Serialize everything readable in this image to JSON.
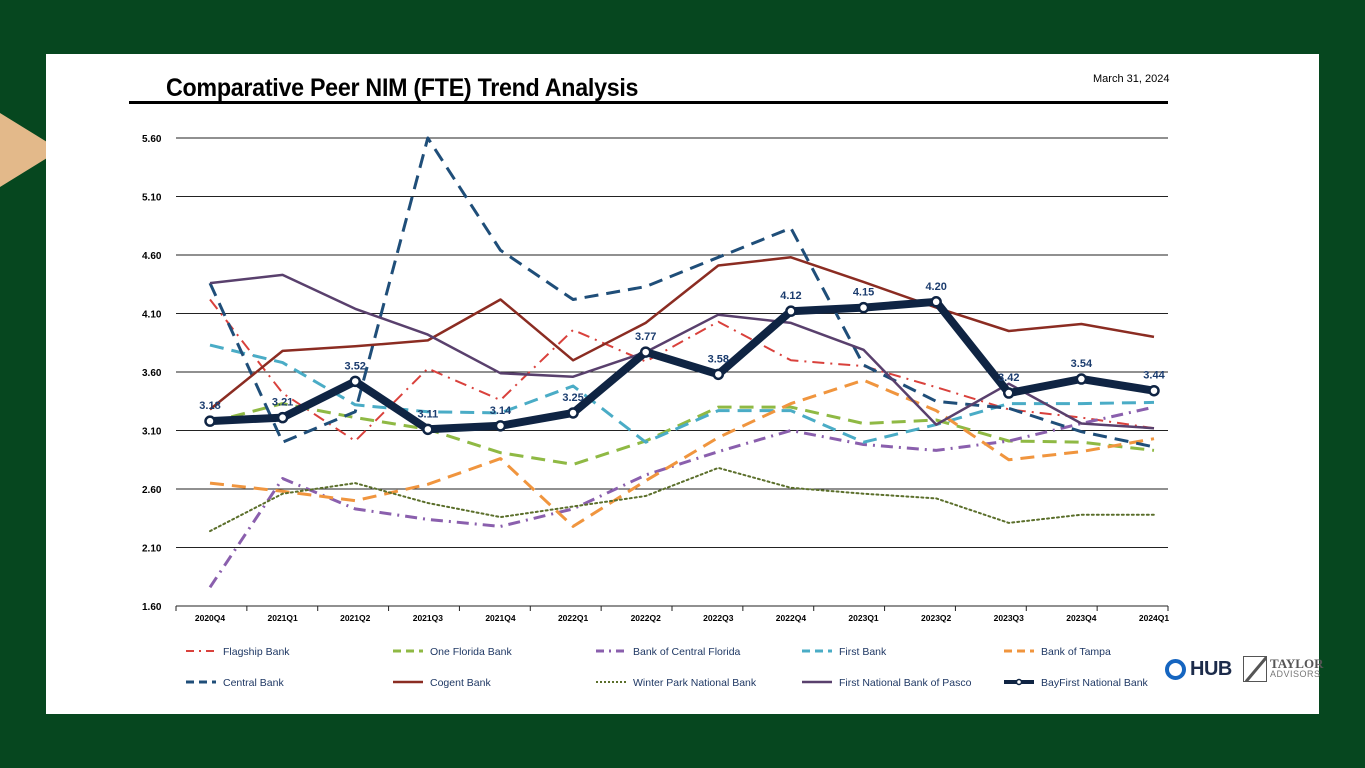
{
  "slide": {
    "title": "Comparative Peer NIM (FTE) Trend Analysis",
    "date": "March 31, 2024"
  },
  "logos": {
    "hub": "HUB",
    "taylor_line1": "TAYLOR",
    "taylor_line2": "ADVISORS"
  },
  "chart_data": {
    "type": "line",
    "title": "Comparative Peer NIM (FTE) Trend Analysis",
    "xlabel": "",
    "ylabel": "",
    "ylim": [
      1.6,
      5.6
    ],
    "yticks": [
      1.6,
      2.1,
      2.6,
      3.1,
      3.6,
      4.1,
      4.6,
      5.1,
      5.6
    ],
    "ytick_labels": [
      "1.60",
      "2.10",
      "2.60",
      "3.10",
      "3.60",
      "4.10",
      "4.60",
      "5.10",
      "5.60"
    ],
    "grid": "horizontal",
    "legend_position": "bottom",
    "categories": [
      "2020Q4",
      "2021Q1",
      "2021Q2",
      "2021Q3",
      "2021Q4",
      "2022Q1",
      "2022Q2",
      "2022Q3",
      "2022Q4",
      "2023Q1",
      "2023Q2",
      "2023Q3",
      "2023Q4",
      "2024Q1"
    ],
    "series": [
      {
        "name": "Flagship Bank",
        "color": "#d9413c",
        "style": "dashdot",
        "width": 2,
        "values": [
          4.22,
          3.42,
          3.01,
          3.63,
          3.36,
          3.96,
          3.69,
          4.03,
          3.7,
          3.65,
          3.47,
          3.28,
          3.21,
          3.12
        ]
      },
      {
        "name": "One Florida Bank",
        "color": "#8fb944",
        "style": "dash",
        "width": 3,
        "values": [
          3.17,
          3.33,
          3.21,
          3.11,
          2.91,
          2.81,
          3.01,
          3.3,
          3.3,
          3.16,
          3.19,
          3.01,
          3.0,
          2.93
        ]
      },
      {
        "name": "Bank of Central Florida",
        "color": "#8a5fad",
        "style": "dashdot",
        "width": 3,
        "values": [
          1.76,
          2.69,
          2.43,
          2.34,
          2.28,
          2.43,
          2.72,
          2.92,
          3.1,
          2.98,
          2.93,
          3.01,
          3.16,
          3.3
        ]
      },
      {
        "name": "First Bank",
        "color": "#4aacc6",
        "style": "dash",
        "width": 3,
        "values": [
          3.83,
          3.68,
          3.32,
          3.26,
          3.25,
          3.48,
          3.0,
          3.27,
          3.27,
          3.0,
          3.15,
          3.33,
          3.33,
          3.34
        ]
      },
      {
        "name": "Bank of Tampa",
        "color": "#f0953e",
        "style": "dash",
        "width": 3,
        "values": [
          2.65,
          2.58,
          2.5,
          2.64,
          2.86,
          2.28,
          2.67,
          3.04,
          3.33,
          3.53,
          3.27,
          2.85,
          2.92,
          3.03
        ]
      },
      {
        "name": "Central Bank",
        "color": "#1f4e79",
        "style": "dash",
        "width": 3,
        "values": [
          4.36,
          3.0,
          3.26,
          5.6,
          4.64,
          4.22,
          4.33,
          4.58,
          4.83,
          3.66,
          3.35,
          3.29,
          3.09,
          2.96
        ]
      },
      {
        "name": "Cogent Bank",
        "color": "#8b2c22",
        "style": "solid",
        "width": 2.5,
        "values": [
          3.28,
          3.78,
          3.82,
          3.87,
          4.22,
          3.7,
          4.02,
          4.51,
          4.58,
          4.37,
          4.15,
          3.95,
          4.01,
          3.9
        ]
      },
      {
        "name": "Winter Park National Bank",
        "color": "#5b6f2b",
        "style": "dotted",
        "width": 2,
        "values": [
          2.24,
          2.56,
          2.65,
          2.48,
          2.36,
          2.45,
          2.54,
          2.78,
          2.61,
          2.56,
          2.52,
          2.31,
          2.38,
          2.38
        ]
      },
      {
        "name": "First National Bank of Pasco",
        "color": "#59406d",
        "style": "solid",
        "width": 2.5,
        "values": [
          4.36,
          4.43,
          4.14,
          3.92,
          3.59,
          3.56,
          3.77,
          4.09,
          4.02,
          3.79,
          3.15,
          3.5,
          3.16,
          3.12
        ]
      },
      {
        "name": "BayFirst National Bank",
        "color": "#0f2443",
        "style": "solid",
        "width": 8,
        "markers": true,
        "values": [
          3.18,
          3.21,
          3.52,
          3.11,
          3.14,
          3.25,
          3.77,
          3.58,
          4.12,
          4.15,
          4.2,
          3.42,
          3.54,
          3.44
        ],
        "labels": [
          "3.18",
          "3.21",
          "3.52",
          "3.11",
          "3.14",
          "3.25",
          "3.77",
          "3.58",
          "4.12",
          "4.15",
          "4.20",
          "3.42",
          "3.54",
          "3.44"
        ]
      }
    ]
  }
}
